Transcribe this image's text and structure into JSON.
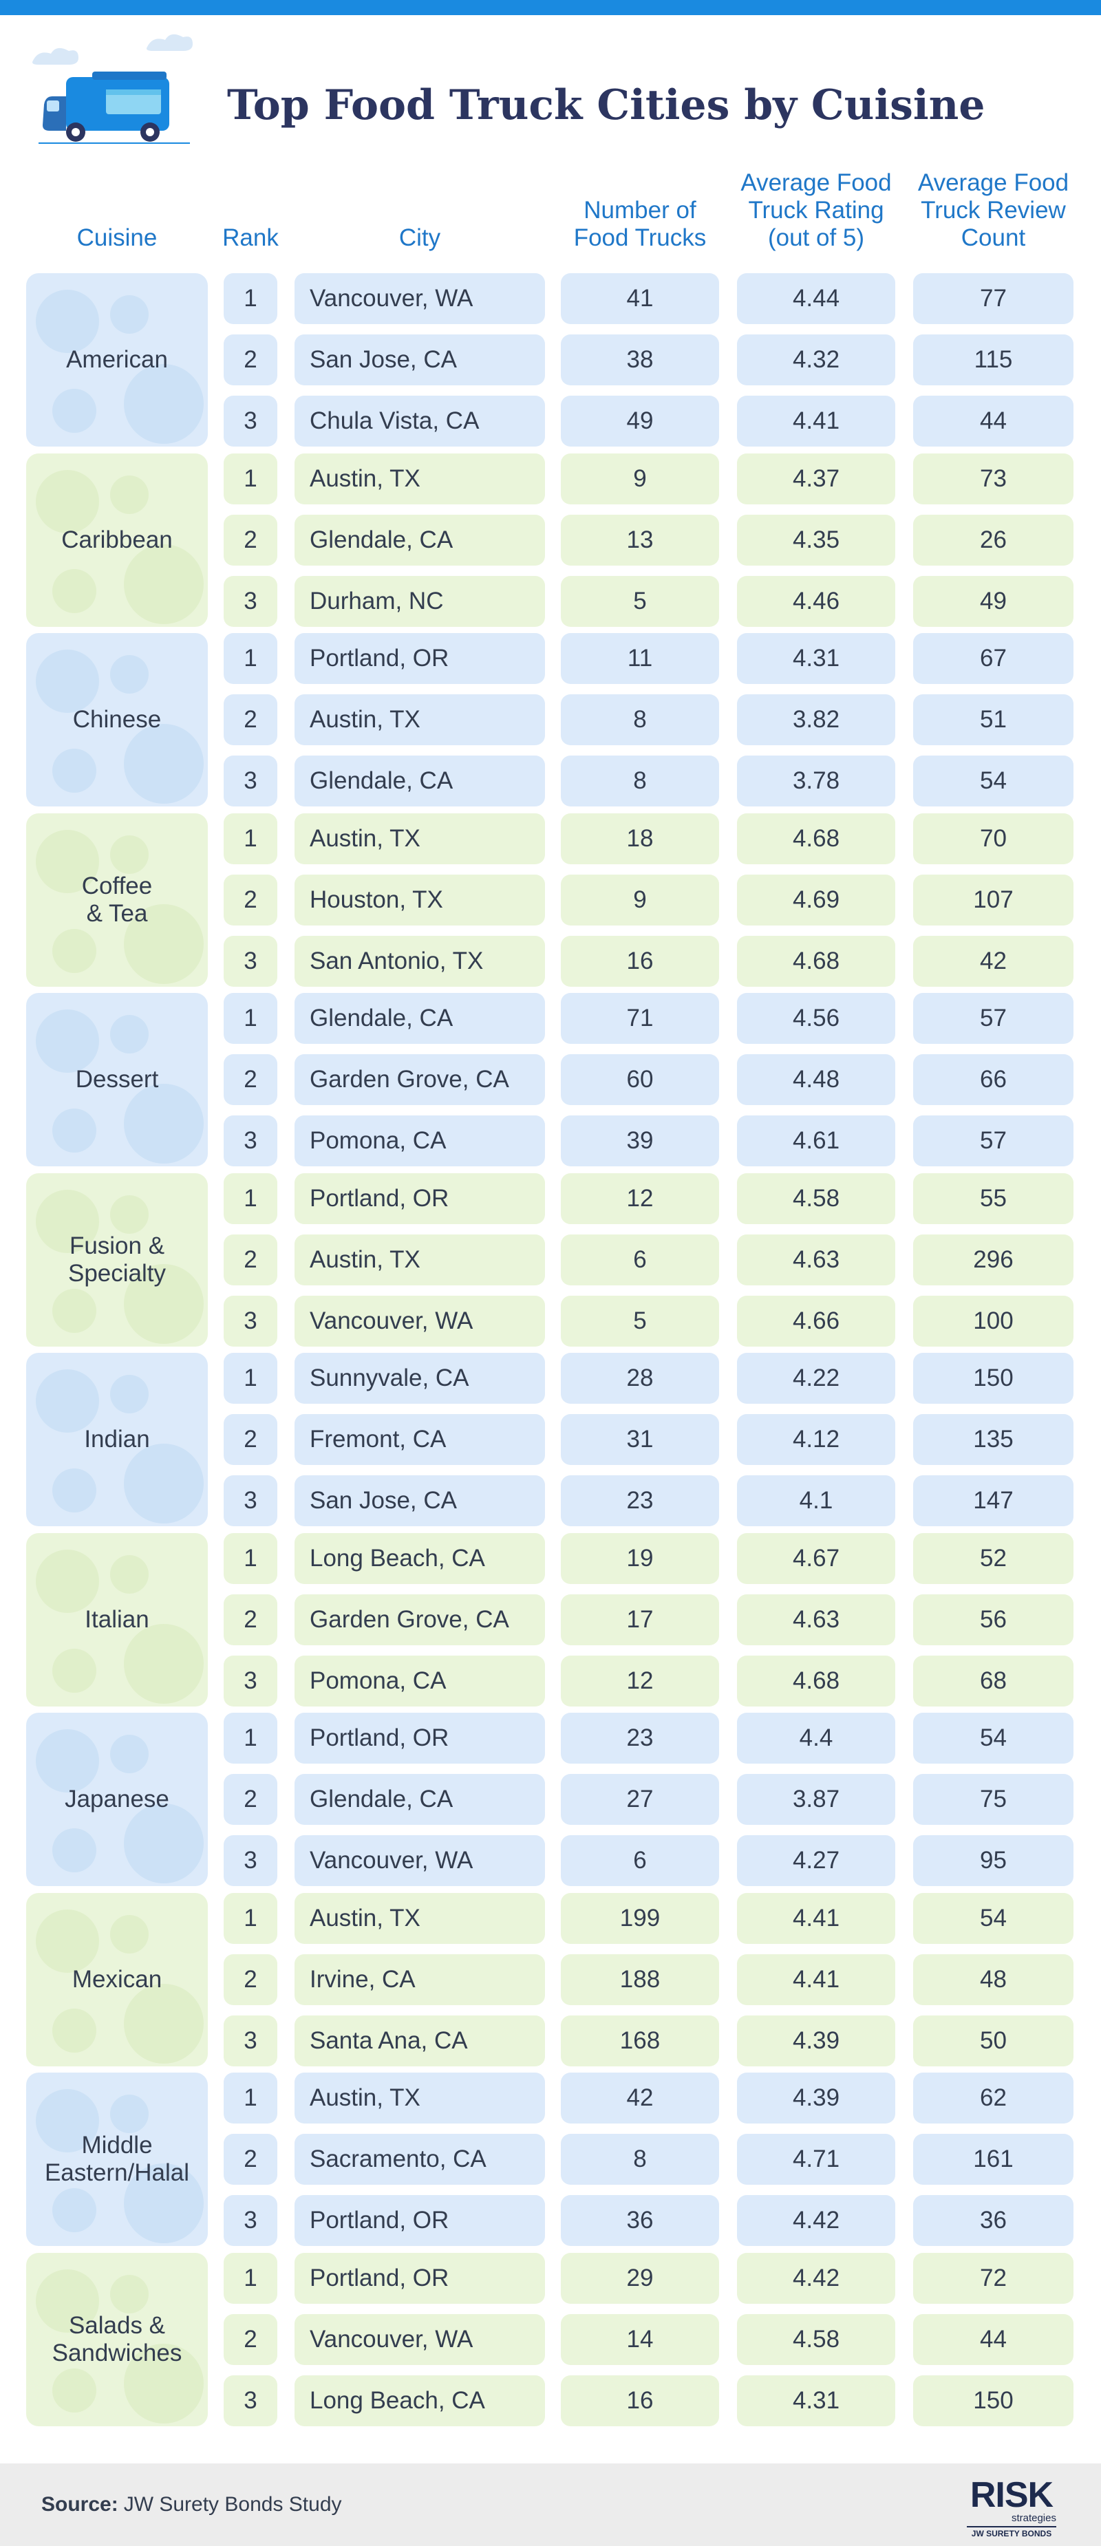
{
  "title": "Top Food Truck Cities by Cuisine",
  "colors": {
    "top_bar": "#1a8ae0",
    "title": "#2c3560",
    "header": "#1f77c8",
    "blue_fill": "#dceafa",
    "green_fill": "#eaf5da",
    "text": "#333d4f"
  },
  "icons": {
    "logo": "food-truck-icon"
  },
  "headers": [
    "Cuisine",
    "Rank",
    "City",
    "Number of\nFood Trucks",
    "Average Food\nTruck Rating\n(out of 5)",
    "Average Food\nTruck Review\nCount"
  ],
  "chart_data": {
    "type": "table",
    "title": "Top Food Truck Cities by Cuisine",
    "columns": [
      "Cuisine",
      "Rank",
      "City",
      "Number of Food Trucks",
      "Average Food Truck Rating (out of 5)",
      "Average Food Truck Review Count"
    ],
    "groups": [
      {
        "cuisine": "American",
        "rows": [
          {
            "rank": "1",
            "city": "Vancouver, WA",
            "trucks": "41",
            "rating": "4.44",
            "reviews": "77"
          },
          {
            "rank": "2",
            "city": "San Jose, CA",
            "trucks": "38",
            "rating": "4.32",
            "reviews": "115"
          },
          {
            "rank": "3",
            "city": "Chula Vista, CA",
            "trucks": "49",
            "rating": "4.41",
            "reviews": "44"
          }
        ]
      },
      {
        "cuisine": "Caribbean",
        "rows": [
          {
            "rank": "1",
            "city": "Austin, TX",
            "trucks": "9",
            "rating": "4.37",
            "reviews": "73"
          },
          {
            "rank": "2",
            "city": "Glendale, CA",
            "trucks": "13",
            "rating": "4.35",
            "reviews": "26"
          },
          {
            "rank": "3",
            "city": "Durham, NC",
            "trucks": "5",
            "rating": "4.46",
            "reviews": "49"
          }
        ]
      },
      {
        "cuisine": "Chinese",
        "rows": [
          {
            "rank": "1",
            "city": "Portland, OR",
            "trucks": "11",
            "rating": "4.31",
            "reviews": "67"
          },
          {
            "rank": "2",
            "city": "Austin, TX",
            "trucks": "8",
            "rating": "3.82",
            "reviews": "51"
          },
          {
            "rank": "3",
            "city": "Glendale, CA",
            "trucks": "8",
            "rating": "3.78",
            "reviews": "54"
          }
        ]
      },
      {
        "cuisine": "Coffee\n& Tea",
        "rows": [
          {
            "rank": "1",
            "city": "Austin, TX",
            "trucks": "18",
            "rating": "4.68",
            "reviews": "70"
          },
          {
            "rank": "2",
            "city": "Houston, TX",
            "trucks": "9",
            "rating": "4.69",
            "reviews": "107"
          },
          {
            "rank": "3",
            "city": "San Antonio, TX",
            "trucks": "16",
            "rating": "4.68",
            "reviews": "42"
          }
        ]
      },
      {
        "cuisine": "Dessert",
        "rows": [
          {
            "rank": "1",
            "city": "Glendale, CA",
            "trucks": "71",
            "rating": "4.56",
            "reviews": "57"
          },
          {
            "rank": "2",
            "city": "Garden Grove, CA",
            "trucks": "60",
            "rating": "4.48",
            "reviews": "66"
          },
          {
            "rank": "3",
            "city": "Pomona, CA",
            "trucks": "39",
            "rating": "4.61",
            "reviews": "57"
          }
        ]
      },
      {
        "cuisine": "Fusion &\nSpecialty",
        "rows": [
          {
            "rank": "1",
            "city": "Portland, OR",
            "trucks": "12",
            "rating": "4.58",
            "reviews": "55"
          },
          {
            "rank": "2",
            "city": "Austin, TX",
            "trucks": "6",
            "rating": "4.63",
            "reviews": "296"
          },
          {
            "rank": "3",
            "city": "Vancouver, WA",
            "trucks": "5",
            "rating": "4.66",
            "reviews": "100"
          }
        ]
      },
      {
        "cuisine": "Indian",
        "rows": [
          {
            "rank": "1",
            "city": "Sunnyvale, CA",
            "trucks": "28",
            "rating": "4.22",
            "reviews": "150"
          },
          {
            "rank": "2",
            "city": "Fremont, CA",
            "trucks": "31",
            "rating": "4.12",
            "reviews": "135"
          },
          {
            "rank": "3",
            "city": "San Jose, CA",
            "trucks": "23",
            "rating": "4.1",
            "reviews": "147"
          }
        ]
      },
      {
        "cuisine": "Italian",
        "rows": [
          {
            "rank": "1",
            "city": "Long Beach, CA",
            "trucks": "19",
            "rating": "4.67",
            "reviews": "52"
          },
          {
            "rank": "2",
            "city": "Garden Grove, CA",
            "trucks": "17",
            "rating": "4.63",
            "reviews": "56"
          },
          {
            "rank": "3",
            "city": "Pomona, CA",
            "trucks": "12",
            "rating": "4.68",
            "reviews": "68"
          }
        ]
      },
      {
        "cuisine": "Japanese",
        "rows": [
          {
            "rank": "1",
            "city": "Portland, OR",
            "trucks": "23",
            "rating": "4.4",
            "reviews": "54"
          },
          {
            "rank": "2",
            "city": "Glendale, CA",
            "trucks": "27",
            "rating": "3.87",
            "reviews": "75"
          },
          {
            "rank": "3",
            "city": "Vancouver, WA",
            "trucks": "6",
            "rating": "4.27",
            "reviews": "95"
          }
        ]
      },
      {
        "cuisine": "Mexican",
        "rows": [
          {
            "rank": "1",
            "city": "Austin, TX",
            "trucks": "199",
            "rating": "4.41",
            "reviews": "54"
          },
          {
            "rank": "2",
            "city": "Irvine, CA",
            "trucks": "188",
            "rating": "4.41",
            "reviews": "48"
          },
          {
            "rank": "3",
            "city": "Santa Ana, CA",
            "trucks": "168",
            "rating": "4.39",
            "reviews": "50"
          }
        ]
      },
      {
        "cuisine": "Middle\nEastern/Halal",
        "rows": [
          {
            "rank": "1",
            "city": "Austin, TX",
            "trucks": "42",
            "rating": "4.39",
            "reviews": "62"
          },
          {
            "rank": "2",
            "city": "Sacramento, CA",
            "trucks": "8",
            "rating": "4.71",
            "reviews": "161"
          },
          {
            "rank": "3",
            "city": "Portland, OR",
            "trucks": "36",
            "rating": "4.42",
            "reviews": "36"
          }
        ]
      },
      {
        "cuisine": "Salads &\nSandwiches",
        "rows": [
          {
            "rank": "1",
            "city": "Portland, OR",
            "trucks": "29",
            "rating": "4.42",
            "reviews": "72"
          },
          {
            "rank": "2",
            "city": "Vancouver, WA",
            "trucks": "14",
            "rating": "4.58",
            "reviews": "44"
          },
          {
            "rank": "3",
            "city": "Long Beach, CA",
            "trucks": "16",
            "rating": "4.31",
            "reviews": "150"
          }
        ]
      }
    ]
  },
  "footer": {
    "source_label": "Source:",
    "source_text": "JW Surety Bonds Study",
    "brand_name": "RISK",
    "brand_sub": "strategies",
    "brand_tag": "JW SURETY BONDS"
  }
}
